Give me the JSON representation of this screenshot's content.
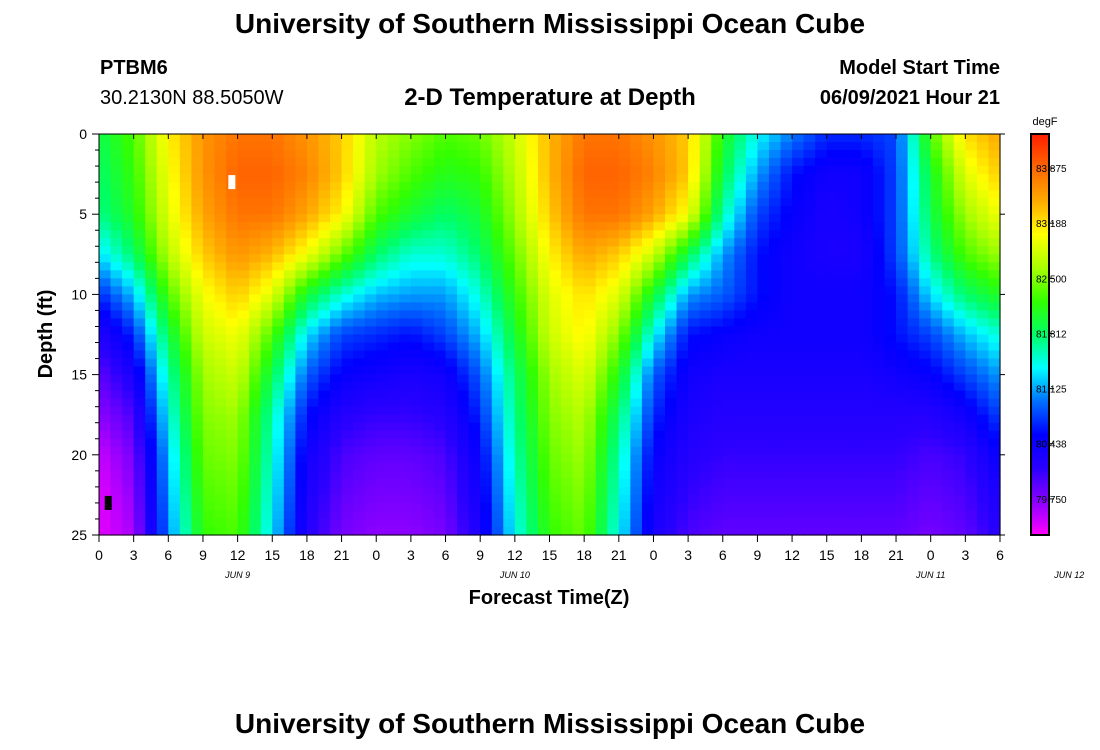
{
  "header": {
    "title": "University of Southern Mississippi Ocean Cube",
    "station_id": "PTBM6",
    "station_coords": "30.2130N  88.5050W",
    "subtitle": "2-D Temperature at Depth",
    "model_start_label": "Model Start Time",
    "model_start_value": "06/09/2021 Hour 21"
  },
  "footer": {
    "title": "University of Southern Mississippi Ocean Cube"
  },
  "chart_data": {
    "type": "heatmap",
    "title": "2-D Temperature at Depth",
    "xlabel": "Forecast Time(Z)",
    "ylabel": "Depth (ft)",
    "x_tick_labels": [
      "0",
      "3",
      "6",
      "9",
      "12",
      "15",
      "18",
      "21",
      "0",
      "3",
      "6",
      "9",
      "12",
      "15",
      "18",
      "21",
      "0",
      "3",
      "6",
      "9",
      "12",
      "15",
      "18",
      "21",
      "0",
      "3",
      "6"
    ],
    "date_labels": [
      "JUN 9",
      "JUN 10",
      "JUN 11",
      "JUN 12"
    ],
    "y_ticks": [
      0,
      5,
      10,
      15,
      20,
      25
    ],
    "ylim": [
      25,
      0
    ],
    "xlim": [
      0,
      78
    ],
    "colorbar": {
      "unit": "degF",
      "min": 79.3,
      "max": 84.3,
      "tick_values": [
        83.875,
        83.188,
        82.5,
        81.812,
        81.125,
        80.438,
        79.75
      ],
      "tick_labels": [
        "83.875",
        "83.188",
        "82.500",
        "81.812",
        "81.125",
        "80.438",
        "79.750"
      ],
      "colors": [
        "#ff00ff",
        "#8a00ff",
        "#2a00ff",
        "#0000ff",
        "#0070ff",
        "#00ffff",
        "#00ff66",
        "#33ff00",
        "#aaff00",
        "#ffff00",
        "#ffaa00",
        "#ff6600",
        "#ff1e00"
      ]
    },
    "depths": [
      0,
      2.5,
      5,
      7.5,
      10,
      12.5,
      15,
      17.5,
      20,
      22.5,
      25
    ],
    "times": [
      0,
      3,
      6,
      9,
      12,
      15,
      18,
      21,
      24,
      27,
      30,
      33,
      36,
      39,
      42,
      45,
      48,
      51,
      54,
      57,
      60,
      63,
      66,
      69,
      72,
      75,
      78
    ],
    "temperature": [
      [
        81.9,
        82.3,
        83.1,
        83.6,
        83.8,
        83.8,
        83.6,
        83.3,
        82.7,
        82.5,
        82.3,
        82.4,
        82.8,
        83.4,
        83.8,
        83.8,
        83.6,
        83.3,
        82.1,
        81.4,
        81.0,
        80.7,
        80.7,
        80.8,
        82.3,
        83.2,
        83.5
      ],
      [
        81.8,
        82.2,
        83.0,
        83.6,
        83.9,
        83.9,
        83.7,
        83.3,
        82.6,
        82.3,
        82.1,
        82.2,
        82.7,
        83.4,
        83.9,
        83.9,
        83.7,
        83.3,
        81.9,
        81.1,
        80.6,
        80.4,
        80.4,
        80.8,
        82.0,
        82.9,
        83.3
      ],
      [
        81.7,
        82.1,
        82.9,
        83.5,
        83.8,
        83.8,
        83.5,
        83.1,
        82.3,
        82.0,
        81.8,
        82.0,
        82.6,
        83.3,
        83.8,
        83.8,
        83.5,
        83.0,
        81.6,
        80.8,
        80.5,
        80.3,
        80.4,
        80.8,
        81.9,
        82.6,
        83.0
      ],
      [
        81.3,
        81.8,
        82.7,
        83.3,
        83.6,
        83.4,
        83.0,
        82.4,
        81.8,
        81.5,
        81.5,
        81.8,
        82.4,
        83.1,
        83.5,
        83.3,
        82.8,
        81.9,
        81.1,
        80.6,
        80.4,
        80.3,
        80.3,
        80.8,
        81.7,
        82.3,
        82.6
      ],
      [
        80.7,
        81.2,
        82.3,
        83.0,
        83.3,
        82.9,
        82.0,
        81.5,
        81.2,
        81.1,
        81.1,
        81.5,
        82.2,
        82.9,
        83.2,
        82.9,
        82.0,
        81.1,
        80.9,
        80.6,
        80.4,
        80.4,
        80.4,
        80.6,
        81.3,
        81.8,
        82.1
      ],
      [
        80.2,
        80.7,
        81.9,
        82.8,
        83.0,
        82.3,
        81.3,
        80.8,
        80.7,
        80.6,
        80.8,
        81.2,
        82.0,
        82.8,
        83.1,
        82.5,
        81.4,
        80.6,
        80.5,
        80.4,
        80.4,
        80.4,
        80.4,
        80.6,
        80.8,
        81.2,
        81.5
      ],
      [
        79.9,
        80.3,
        81.6,
        82.6,
        82.8,
        81.9,
        80.9,
        80.5,
        80.4,
        80.3,
        80.4,
        80.9,
        81.8,
        82.6,
        82.9,
        82.1,
        80.9,
        80.4,
        80.3,
        80.3,
        80.3,
        80.3,
        80.3,
        80.4,
        80.5,
        80.8,
        81.1
      ],
      [
        79.7,
        80.0,
        81.4,
        82.5,
        82.6,
        81.6,
        80.6,
        80.2,
        80.1,
        80.1,
        80.2,
        80.7,
        81.7,
        82.5,
        82.7,
        81.8,
        80.7,
        80.3,
        80.2,
        80.2,
        80.2,
        80.2,
        80.2,
        80.2,
        80.2,
        80.4,
        80.8
      ],
      [
        79.5,
        79.8,
        81.2,
        82.4,
        82.5,
        81.5,
        80.4,
        80.0,
        79.9,
        79.9,
        80.0,
        80.5,
        81.6,
        82.4,
        82.6,
        81.6,
        80.5,
        80.2,
        80.1,
        80.1,
        80.1,
        80.1,
        80.1,
        80.1,
        80.0,
        80.1,
        80.5
      ],
      [
        79.4,
        79.7,
        81.1,
        82.3,
        82.4,
        81.4,
        80.3,
        79.9,
        79.8,
        79.8,
        79.9,
        80.4,
        81.5,
        82.3,
        82.5,
        81.5,
        80.4,
        80.1,
        80.0,
        80.0,
        80.0,
        80.0,
        80.0,
        80.0,
        79.9,
        80.0,
        80.3
      ],
      [
        79.4,
        79.6,
        81.0,
        82.2,
        82.3,
        81.3,
        80.2,
        79.8,
        79.7,
        79.7,
        79.8,
        80.3,
        81.4,
        82.2,
        82.4,
        81.4,
        80.3,
        80.0,
        79.9,
        79.9,
        79.9,
        79.9,
        79.9,
        79.9,
        79.8,
        79.9,
        80.2
      ]
    ],
    "markers": [
      {
        "type": "white-bar",
        "time": 11.5,
        "depth": 3
      },
      {
        "type": "black-bar",
        "time": 0.8,
        "depth": 23
      }
    ]
  }
}
